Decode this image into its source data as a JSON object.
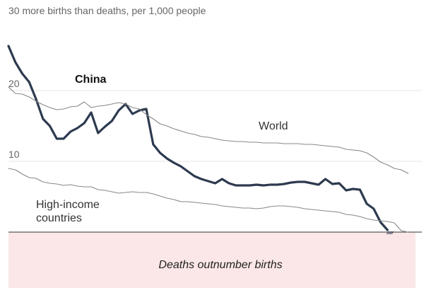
{
  "chart_data": {
    "type": "line",
    "title": "",
    "xlabel": "",
    "ylabel": "",
    "ylim": [
      0,
      30
    ],
    "xlim": [
      1962,
      2022
    ],
    "yticks": [
      {
        "value": 30,
        "label": "30 more births than deaths, per 1,000 people"
      },
      {
        "value": 20,
        "label": "20"
      },
      {
        "value": 10,
        "label": "10"
      }
    ],
    "grid": true,
    "negative_region_label": "Deaths outnumber births",
    "colors": {
      "china": "#2d3a4f",
      "world": "#888888",
      "high_income": "#888888",
      "negative_fill": "#fbe7e7",
      "zero_line": "#333333"
    },
    "series": [
      {
        "name": "China",
        "emphasis": true,
        "x": [
          1962,
          1963,
          1964,
          1965,
          1966,
          1967,
          1968,
          1969,
          1970,
          1971,
          1972,
          1973,
          1974,
          1975,
          1976,
          1977,
          1978,
          1979,
          1980,
          1981,
          1982,
          1983,
          1984,
          1985,
          1986,
          1987,
          1988,
          1989,
          1990,
          1991,
          1992,
          1993,
          1994,
          1995,
          1996,
          1997,
          1998,
          1999,
          2000,
          2001,
          2002,
          2003,
          2004,
          2005,
          2006,
          2007,
          2008,
          2009,
          2010,
          2011,
          2012,
          2013,
          2014,
          2015,
          2016,
          2017,
          2018,
          2019,
          2020,
          2021,
          2022
        ],
        "y": [
          26.3,
          24.0,
          22.4,
          21.2,
          18.8,
          16.0,
          15.0,
          13.2,
          13.2,
          14.2,
          14.7,
          15.4,
          16.9,
          14.0,
          14.9,
          15.7,
          17.2,
          18.1,
          16.7,
          17.2,
          17.4,
          12.4,
          11.2,
          10.4,
          9.8,
          9.3,
          8.6,
          7.9,
          7.5,
          7.2,
          6.9,
          7.5,
          6.9,
          6.6,
          6.6,
          6.6,
          6.7,
          6.6,
          6.7,
          6.7,
          6.8,
          7.0,
          7.1,
          7.1,
          6.9,
          6.7,
          7.5,
          6.8,
          6.9,
          5.9,
          6.1,
          6.0,
          4.0,
          3.3,
          1.4,
          0.3,
          null,
          null,
          null,
          null,
          null
        ],
        "tooltip_note": ""
      },
      {
        "name": "World",
        "emphasis": false,
        "x": [
          1962,
          1963,
          1964,
          1965,
          1966,
          1967,
          1968,
          1969,
          1970,
          1971,
          1972,
          1973,
          1974,
          1975,
          1976,
          1977,
          1978,
          1979,
          1980,
          1981,
          1982,
          1983,
          1984,
          1985,
          1986,
          1987,
          1988,
          1989,
          1990,
          1991,
          1992,
          1993,
          1994,
          1995,
          1996,
          1997,
          1998,
          1999,
          2000,
          2001,
          2002,
          2003,
          2004,
          2005,
          2006,
          2007,
          2008,
          2009,
          2010,
          2011,
          2012,
          2013,
          2014,
          2015,
          2016,
          2017,
          2018,
          2019,
          2020,
          2021,
          2022
        ],
        "y": [
          20.5,
          19.6,
          19.5,
          19.1,
          18.5,
          18.0,
          17.6,
          17.3,
          17.4,
          17.7,
          17.8,
          18.4,
          17.6,
          17.8,
          17.9,
          18.1,
          18.3,
          18.1,
          17.6,
          17.4,
          16.6,
          16.0,
          15.3,
          15.0,
          14.6,
          14.3,
          14.0,
          13.8,
          13.5,
          13.4,
          13.2,
          13.0,
          12.9,
          12.8,
          12.8,
          12.7,
          12.7,
          12.6,
          12.6,
          12.6,
          12.5,
          12.5,
          12.5,
          12.4,
          12.4,
          12.3,
          12.2,
          12.1,
          12.0,
          11.7,
          11.6,
          11.5,
          11.2,
          10.6,
          9.9,
          9.5,
          9.0,
          8.8,
          8.3,
          null,
          null
        ]
      },
      {
        "name": "High-income countries",
        "emphasis": false,
        "x": [
          1962,
          1963,
          1964,
          1965,
          1966,
          1967,
          1968,
          1969,
          1970,
          1971,
          1972,
          1973,
          1974,
          1975,
          1976,
          1977,
          1978,
          1979,
          1980,
          1981,
          1982,
          1983,
          1984,
          1985,
          1986,
          1987,
          1988,
          1989,
          1990,
          1991,
          1992,
          1993,
          1994,
          1995,
          1996,
          1997,
          1998,
          1999,
          2000,
          2001,
          2002,
          2003,
          2004,
          2005,
          2006,
          2007,
          2008,
          2009,
          2010,
          2011,
          2012,
          2013,
          2014,
          2015,
          2016,
          2017,
          2018,
          2019,
          2020,
          2021,
          2022
        ],
        "y": [
          9.0,
          8.8,
          8.2,
          7.7,
          7.6,
          7.1,
          6.9,
          6.8,
          6.6,
          6.7,
          6.5,
          6.4,
          6.4,
          6.0,
          5.9,
          5.7,
          5.5,
          5.6,
          5.7,
          5.6,
          5.6,
          5.4,
          5.1,
          4.8,
          4.6,
          4.3,
          4.3,
          4.2,
          4.1,
          4.0,
          3.9,
          3.7,
          3.6,
          3.5,
          3.4,
          3.4,
          3.3,
          3.4,
          3.6,
          3.7,
          3.7,
          3.6,
          3.5,
          3.3,
          3.2,
          3.1,
          3.0,
          2.9,
          2.8,
          2.5,
          2.4,
          2.2,
          1.9,
          1.7,
          1.6,
          1.5,
          1.3,
          0.2,
          0.0,
          null,
          null
        ]
      }
    ],
    "annotations": [
      {
        "series": "China",
        "text": "China"
      },
      {
        "series": "World",
        "text": "World"
      },
      {
        "series": "High-income countries",
        "lines": [
          "High-income",
          "countries"
        ]
      }
    ]
  }
}
